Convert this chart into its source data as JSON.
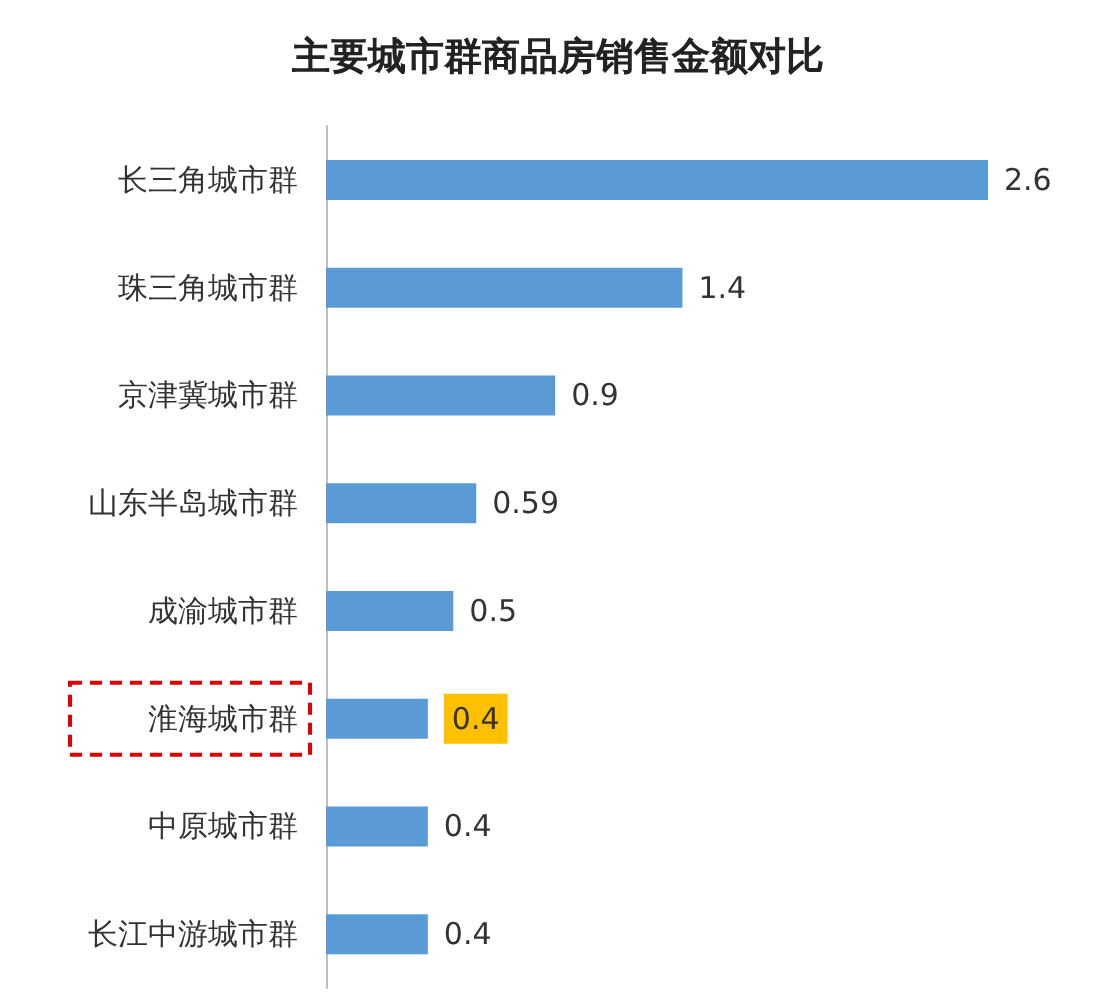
{
  "chart_data": {
    "type": "bar",
    "orientation": "horizontal",
    "title": "主要城市群商品房销售金额对比",
    "categories": [
      "长三角城市群",
      "珠三角城市群",
      "京津冀城市群",
      "山东半岛城市群",
      "成渝城市群",
      "淮海城市群",
      "中原城市群",
      "长江中游城市群"
    ],
    "values": [
      2.6,
      1.4,
      0.9,
      0.59,
      0.5,
      0.4,
      0.4,
      0.4
    ],
    "color": "#5b9bd5",
    "data_labels": true,
    "tick_labels": "y"
  }
}
